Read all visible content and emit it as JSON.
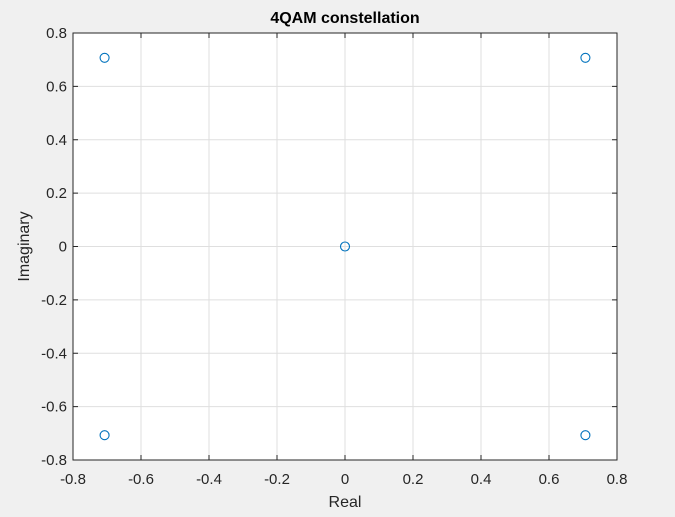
{
  "chart_data": {
    "type": "scatter",
    "title": "4QAM constellation",
    "xlabel": "Real",
    "ylabel": "Imaginary",
    "xlim": [
      -0.8,
      0.8
    ],
    "ylim": [
      -0.8,
      0.8
    ],
    "x_ticks": [
      "-0.8",
      "-0.6",
      "-0.4",
      "-0.2",
      "0",
      "0.2",
      "0.4",
      "0.6",
      "0.8"
    ],
    "y_ticks": [
      "-0.8",
      "-0.6",
      "-0.4",
      "-0.2",
      "0",
      "0.2",
      "0.4",
      "0.6",
      "0.8"
    ],
    "grid": true,
    "marker": "circle",
    "points": [
      {
        "x": -0.7071,
        "y": 0.7071
      },
      {
        "x": 0.7071,
        "y": 0.7071
      },
      {
        "x": 0,
        "y": 0
      },
      {
        "x": -0.7071,
        "y": -0.7071
      },
      {
        "x": 0.7071,
        "y": -0.7071
      }
    ],
    "colors": {
      "marker": "#0072bd",
      "grid": "#dfdfdf",
      "axes": "#262626",
      "plot_background": "#ffffff",
      "figure_background": "#f0f0f0"
    }
  }
}
